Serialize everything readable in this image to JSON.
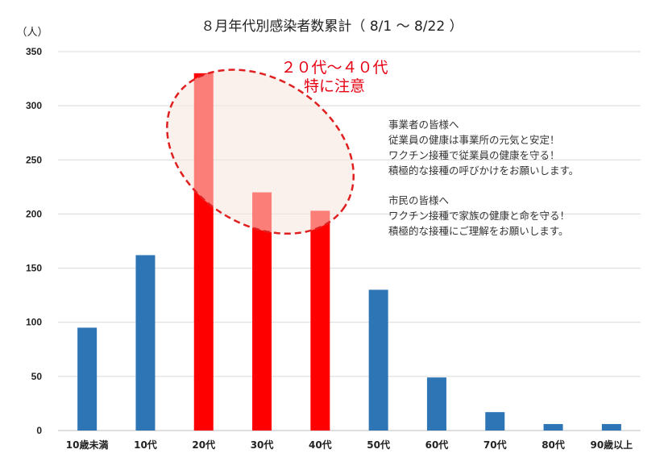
{
  "chart_data": {
    "type": "bar",
    "title": "８月年代別感染者数累計（ 8/1 〜 8/22 ）",
    "ylabel": "（人）",
    "xlabel": "",
    "categories": [
      "10歳未満",
      "10代",
      "20代",
      "30代",
      "40代",
      "50代",
      "60代",
      "70代",
      "80代",
      "90歳以上"
    ],
    "values": [
      95,
      162,
      330,
      220,
      203,
      130,
      49,
      17,
      6,
      6
    ],
    "ylim": [
      0,
      350
    ],
    "yticks": [
      0,
      50,
      100,
      150,
      200,
      250,
      300,
      350
    ],
    "grid": true,
    "legend": "none",
    "highlight_indices": [
      2,
      3,
      4
    ],
    "colors": {
      "default": "#2e75b6",
      "highlight": "#ff0000",
      "callout_text": "#e60012",
      "ellipse_stroke": "#e02020",
      "ellipse_fill": "#f7e6dc"
    },
    "annotations": {
      "callout_line1": "２０代〜４０代",
      "callout_line2": "特に注意"
    },
    "messages": [
      "事業者の皆様へ",
      "従業員の健康は事業所の元気と安定！",
      "ワクチン接種で従業員の健康を守る！",
      "積極的な接種の呼びかけをお願いします。",
      "市民の皆様へ",
      "ワクチン接種で家族の健康と命を守る！",
      "積極的な接種にご理解をお願いします。"
    ]
  }
}
